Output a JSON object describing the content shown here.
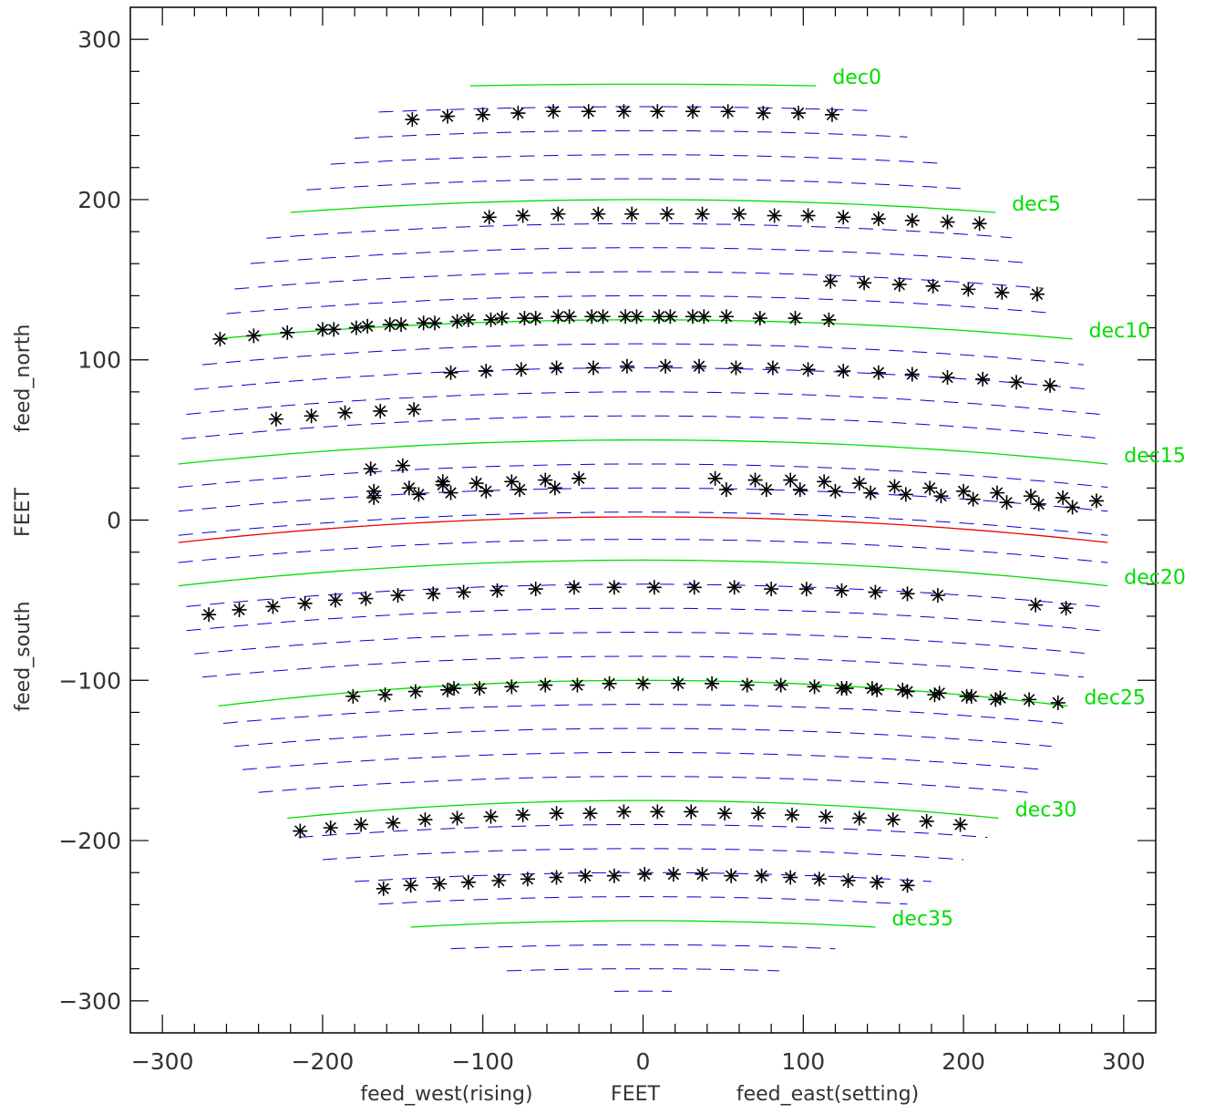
{
  "chart_data": {
    "type": "scatter",
    "title": "",
    "xlabel": {
      "left": "feed_west(rising)",
      "center": "FEET",
      "right": "feed_east(setting)"
    },
    "ylabel": {
      "bottom": "feed_south",
      "center": "FEET",
      "top": "feed_north"
    },
    "xlim": [
      -320,
      320
    ],
    "ylim": [
      -320,
      320
    ],
    "xticks": [
      -300,
      -200,
      -100,
      0,
      100,
      200,
      300
    ],
    "yticks": [
      -300,
      -200,
      -100,
      0,
      100,
      200,
      300
    ],
    "xtick_labels": [
      "−300",
      "−200",
      "−100",
      "0",
      "100",
      "200",
      "300"
    ],
    "ytick_labels": [
      "−300",
      "−200",
      "−100",
      "0",
      "100",
      "200",
      "300"
    ],
    "colors": {
      "dec_line": "#00dd00",
      "strip_line": "#0000dd",
      "zenith_line": "#ee0000",
      "marker": "#000000",
      "axis": "#000000"
    },
    "dec_lines": [
      {
        "name": "dec0",
        "x0": -108,
        "x1": 108,
        "y_center": 272,
        "y_edge": 271
      },
      {
        "name": "dec5",
        "x0": -220,
        "x1": 220,
        "y_center": 200,
        "y_edge": 192
      },
      {
        "name": "dec10",
        "x0": -268,
        "x1": 268,
        "y_center": 125,
        "y_edge": 113
      },
      {
        "name": "dec15",
        "x0": -290,
        "x1": 290,
        "y_center": 50,
        "y_edge": 35
      },
      {
        "name": "dec20",
        "x0": -290,
        "x1": 290,
        "y_center": -25,
        "y_edge": -41
      },
      {
        "name": "dec25",
        "x0": -265,
        "x1": 265,
        "y_center": -100,
        "y_edge": -116
      },
      {
        "name": "dec30",
        "x0": -222,
        "x1": 222,
        "y_center": -175,
        "y_edge": -186
      },
      {
        "name": "dec35",
        "x0": -145,
        "x1": 145,
        "y_center": -250,
        "y_edge": -254
      }
    ],
    "zenith_line": {
      "x0": -290,
      "x1": 290,
      "y_center": 2,
      "y_edge": -14
    },
    "strip_lines": [
      {
        "x0": -165,
        "x1": 140,
        "y_center": 258
      },
      {
        "x0": -180,
        "x1": 165,
        "y_center": 243
      },
      {
        "x0": -195,
        "x1": 185,
        "y_center": 228
      },
      {
        "x0": -210,
        "x1": 200,
        "y_center": 213
      },
      {
        "x0": -235,
        "x1": 230,
        "y_center": 185
      },
      {
        "x0": -245,
        "x1": 240,
        "y_center": 170
      },
      {
        "x0": -255,
        "x1": 250,
        "y_center": 155
      },
      {
        "x0": -260,
        "x1": 255,
        "y_center": 140
      },
      {
        "x0": -275,
        "x1": 275,
        "y_center": 110
      },
      {
        "x0": -280,
        "x1": 280,
        "y_center": 95
      },
      {
        "x0": -285,
        "x1": 285,
        "y_center": 80
      },
      {
        "x0": -288,
        "x1": 288,
        "y_center": 65
      },
      {
        "x0": -290,
        "x1": 290,
        "y_center": 35
      },
      {
        "x0": -290,
        "x1": 290,
        "y_center": 20
      },
      {
        "x0": -290,
        "x1": 290,
        "y_center": 5
      },
      {
        "x0": -290,
        "x1": 290,
        "y_center": -12
      },
      {
        "x0": -285,
        "x1": 285,
        "y_center": -40
      },
      {
        "x0": -285,
        "x1": 285,
        "y_center": -55
      },
      {
        "x0": -280,
        "x1": 280,
        "y_center": -70
      },
      {
        "x0": -275,
        "x1": 275,
        "y_center": -85
      },
      {
        "x0": -262,
        "x1": 262,
        "y_center": -115
      },
      {
        "x0": -255,
        "x1": 255,
        "y_center": -130
      },
      {
        "x0": -250,
        "x1": 250,
        "y_center": -145
      },
      {
        "x0": -240,
        "x1": 240,
        "y_center": -160
      },
      {
        "x0": -215,
        "x1": 215,
        "y_center": -190
      },
      {
        "x0": -200,
        "x1": 200,
        "y_center": -205
      },
      {
        "x0": -180,
        "x1": 180,
        "y_center": -220
      },
      {
        "x0": -165,
        "x1": 165,
        "y_center": -235
      },
      {
        "x0": -120,
        "x1": 120,
        "y_center": -265
      },
      {
        "x0": -85,
        "x1": 85,
        "y_center": -280
      },
      {
        "x0": -18,
        "x1": 18,
        "y_center": -294
      }
    ],
    "series": [
      {
        "points": [
          [
            -144,
            250
          ],
          [
            -122,
            252
          ],
          [
            -100,
            253
          ],
          [
            -78,
            254
          ],
          [
            -56,
            255
          ],
          [
            -34,
            255
          ],
          [
            -12,
            255
          ],
          [
            9,
            255
          ],
          [
            31,
            255
          ],
          [
            53,
            255
          ],
          [
            75,
            254
          ],
          [
            97,
            254
          ],
          [
            118,
            253
          ],
          [
            -96,
            189
          ],
          [
            -75,
            190
          ],
          [
            -53,
            191
          ],
          [
            -28,
            191
          ],
          [
            -7,
            191
          ],
          [
            15,
            191
          ],
          [
            37,
            191
          ],
          [
            60,
            191
          ],
          [
            82,
            190
          ],
          [
            103,
            190
          ],
          [
            125,
            189
          ],
          [
            147,
            188
          ],
          [
            168,
            187
          ],
          [
            190,
            186
          ],
          [
            210,
            185
          ],
          [
            117,
            149
          ],
          [
            138,
            148
          ],
          [
            160,
            147
          ],
          [
            181,
            146
          ],
          [
            203,
            144
          ],
          [
            224,
            142
          ],
          [
            246,
            141
          ],
          [
            -264,
            113
          ],
          [
            -243,
            115
          ],
          [
            -222,
            117
          ],
          [
            -200,
            119
          ],
          [
            -193,
            119
          ],
          [
            -179,
            120
          ],
          [
            -172,
            121
          ],
          [
            -158,
            122
          ],
          [
            -151,
            122
          ],
          [
            -137,
            123
          ],
          [
            -130,
            123
          ],
          [
            -116,
            124
          ],
          [
            -109,
            125
          ],
          [
            -95,
            125
          ],
          [
            -88,
            126
          ],
          [
            -74,
            126
          ],
          [
            -67,
            126
          ],
          [
            -53,
            127
          ],
          [
            -46,
            127
          ],
          [
            -32,
            127
          ],
          [
            -25,
            127
          ],
          [
            -11,
            127
          ],
          [
            -4,
            127
          ],
          [
            10,
            127
          ],
          [
            17,
            127
          ],
          [
            31,
            127
          ],
          [
            38,
            127
          ],
          [
            52,
            127
          ],
          [
            73,
            126
          ],
          [
            95,
            126
          ],
          [
            116,
            125
          ],
          [
            -120,
            92
          ],
          [
            -98,
            93
          ],
          [
            -76,
            94
          ],
          [
            -54,
            95
          ],
          [
            -31,
            95
          ],
          [
            -10,
            96
          ],
          [
            14,
            96
          ],
          [
            35,
            96
          ],
          [
            58,
            95
          ],
          [
            81,
            95
          ],
          [
            103,
            94
          ],
          [
            125,
            93
          ],
          [
            147,
            92
          ],
          [
            168,
            91
          ],
          [
            190,
            89
          ],
          [
            212,
            88
          ],
          [
            233,
            86
          ],
          [
            254,
            84
          ],
          [
            -229,
            63
          ],
          [
            -207,
            65
          ],
          [
            -186,
            67
          ],
          [
            -164,
            68
          ],
          [
            -143,
            69
          ],
          [
            -170,
            32
          ],
          [
            -150,
            34
          ],
          [
            -168,
            18
          ],
          [
            -146,
            20
          ],
          [
            -125,
            22
          ],
          [
            -104,
            23
          ],
          [
            -82,
            24
          ],
          [
            -61,
            25
          ],
          [
            -40,
            26
          ],
          [
            -168,
            14
          ],
          [
            -140,
            16
          ],
          [
            -125,
            24
          ],
          [
            -120,
            17
          ],
          [
            -98,
            18
          ],
          [
            -77,
            19
          ],
          [
            -55,
            20
          ],
          [
            45,
            26
          ],
          [
            52,
            19
          ],
          [
            70,
            25
          ],
          [
            77,
            19
          ],
          [
            92,
            25
          ],
          [
            98,
            19
          ],
          [
            113,
            24
          ],
          [
            120,
            18
          ],
          [
            135,
            23
          ],
          [
            142,
            17
          ],
          [
            157,
            21
          ],
          [
            164,
            16
          ],
          [
            179,
            20
          ],
          [
            186,
            15
          ],
          [
            200,
            18
          ],
          [
            206,
            13
          ],
          [
            221,
            17
          ],
          [
            227,
            11
          ],
          [
            242,
            15
          ],
          [
            247,
            10
          ],
          [
            262,
            14
          ],
          [
            268,
            8
          ],
          [
            283,
            12
          ]
        ]
      },
      {
        "points": [
          [
            -271,
            -59
          ],
          [
            -252,
            -56
          ],
          [
            -231,
            -54
          ],
          [
            -211,
            -52
          ],
          [
            -192,
            -50
          ],
          [
            -173,
            -49
          ],
          [
            -153,
            -47
          ],
          [
            -131,
            -46
          ],
          [
            -112,
            -45
          ],
          [
            -91,
            -44
          ],
          [
            -67,
            -43
          ],
          [
            -43,
            -42
          ],
          [
            -18,
            -42
          ],
          [
            7,
            -42
          ],
          [
            32,
            -42
          ],
          [
            57,
            -42
          ],
          [
            80,
            -43
          ],
          [
            102,
            -43
          ],
          [
            124,
            -44
          ],
          [
            145,
            -45
          ],
          [
            165,
            -46
          ],
          [
            184,
            -47
          ],
          [
            245,
            -53
          ],
          [
            264,
            -55
          ],
          [
            -181,
            -110
          ],
          [
            -161,
            -109
          ],
          [
            -142,
            -107
          ],
          [
            -122,
            -106
          ],
          [
            -102,
            -105
          ],
          [
            -82,
            -104
          ],
          [
            -61,
            -103
          ],
          [
            -41,
            -103
          ],
          [
            -21,
            -102
          ],
          [
            0,
            -102
          ],
          [
            22,
            -102
          ],
          [
            43,
            -102
          ],
          [
            65,
            -103
          ],
          [
            86,
            -103
          ],
          [
            107,
            -104
          ],
          [
            127,
            -105
          ],
          [
            146,
            -106
          ],
          [
            165,
            -107
          ],
          [
            185,
            -108
          ],
          [
            205,
            -110
          ],
          [
            223,
            -111
          ],
          [
            241,
            -112
          ],
          [
            259,
            -114
          ],
          [
            -118,
            -105
          ],
          [
            124,
            -105
          ],
          [
            143,
            -105
          ],
          [
            162,
            -106
          ],
          [
            182,
            -109
          ],
          [
            202,
            -110
          ],
          [
            220,
            -112
          ],
          [
            -214,
            -194
          ],
          [
            -195,
            -192
          ],
          [
            -176,
            -190
          ],
          [
            -156,
            -189
          ],
          [
            -136,
            -187
          ],
          [
            -116,
            -186
          ],
          [
            -95,
            -185
          ],
          [
            -75,
            -184
          ],
          [
            -54,
            -183
          ],
          [
            -33,
            -183
          ],
          [
            -12,
            -182
          ],
          [
            9,
            -182
          ],
          [
            30,
            -182
          ],
          [
            51,
            -183
          ],
          [
            72,
            -183
          ],
          [
            93,
            -184
          ],
          [
            114,
            -185
          ],
          [
            135,
            -186
          ],
          [
            156,
            -187
          ],
          [
            177,
            -188
          ],
          [
            198,
            -190
          ],
          [
            -162,
            -230
          ],
          [
            -145,
            -228
          ],
          [
            -127,
            -227
          ],
          [
            -109,
            -226
          ],
          [
            -90,
            -225
          ],
          [
            -72,
            -224
          ],
          [
            -54,
            -223
          ],
          [
            -36,
            -222
          ],
          [
            -18,
            -222
          ],
          [
            1,
            -221
          ],
          [
            19,
            -221
          ],
          [
            37,
            -221
          ],
          [
            55,
            -222
          ],
          [
            74,
            -222
          ],
          [
            92,
            -223
          ],
          [
            110,
            -224
          ],
          [
            128,
            -225
          ],
          [
            146,
            -226
          ],
          [
            165,
            -228
          ]
        ]
      }
    ]
  }
}
